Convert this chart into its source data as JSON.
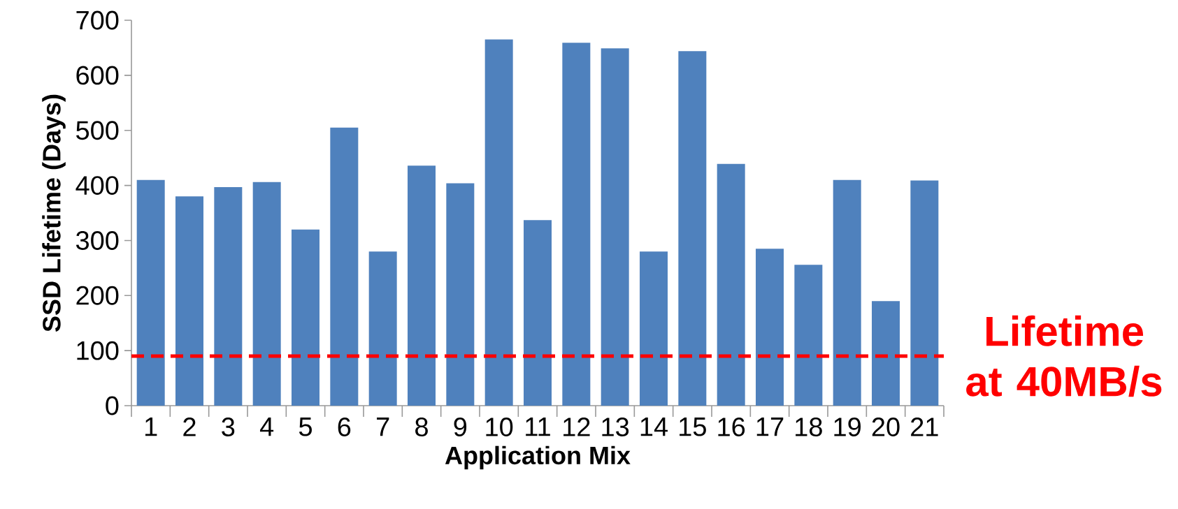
{
  "chart_data": {
    "type": "bar",
    "xlabel": "Application Mix",
    "ylabel": "SSD Lifetime (Days)",
    "categories": [
      "1",
      "2",
      "3",
      "4",
      "5",
      "6",
      "7",
      "8",
      "9",
      "10",
      "11",
      "12",
      "13",
      "14",
      "15",
      "16",
      "17",
      "18",
      "19",
      "20",
      "21"
    ],
    "values": [
      410,
      380,
      397,
      406,
      320,
      505,
      280,
      436,
      404,
      665,
      337,
      659,
      649,
      280,
      644,
      439,
      285,
      256,
      410,
      190,
      409
    ],
    "color": "#4f81bd",
    "ylim": [
      0,
      700
    ],
    "yticks": [
      0,
      100,
      200,
      300,
      400,
      500,
      600,
      700
    ],
    "grid": false,
    "ref_lines": [
      {
        "axis": "y",
        "value": 90,
        "label": "Lifetime at 40MB/s",
        "color": "#ff0000",
        "line_style": "dashed"
      }
    ]
  }
}
